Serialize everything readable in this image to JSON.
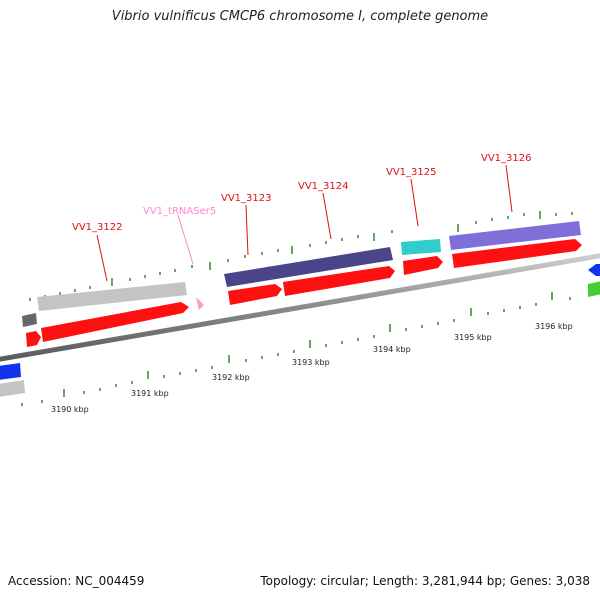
{
  "title": "Vibrio vulnificus CMCP6 chromosome I, complete genome",
  "footer": {
    "accession": "Accession: NC_004459",
    "topology": "Topology: circular; Length: 3,281,944 bp; Genes: 3,038"
  },
  "colors": {
    "backbone": "#8a8a8a",
    "cds": "#ff1010",
    "gene_gray": "#c4c4c4",
    "gene_dark_gray": "#686868",
    "gene_navy": "#4a4488",
    "gene_cyan": "#33cccc",
    "gene_purple": "#7f6fd8",
    "gene_blue": "#1133ee",
    "gene_green": "#44cc33",
    "trna": "#ff99cc",
    "label_red": "#dd1111",
    "label_pink": "#ff88cc",
    "tick": "#2e8b2e"
  },
  "scale_labels": [
    "3190 kbp",
    "3191 kbp",
    "3192 kbp",
    "3193 kbp",
    "3194 kbp",
    "3195 kbp",
    "3196 kbp"
  ],
  "gene_labels": [
    "VV1_3122",
    "VV1_tRNASer5",
    "VV1_3123",
    "VV1_3124",
    "VV1_3125",
    "VV1_3126"
  ]
}
